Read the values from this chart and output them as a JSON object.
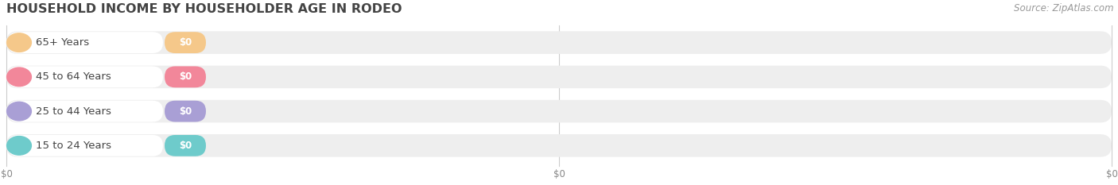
{
  "title": "HOUSEHOLD INCOME BY HOUSEHOLDER AGE IN RODEO",
  "source": "Source: ZipAtlas.com",
  "categories": [
    "15 to 24 Years",
    "25 to 44 Years",
    "45 to 64 Years",
    "65+ Years"
  ],
  "values": [
    0,
    0,
    0,
    0
  ],
  "bar_colors": [
    "#6ecbcb",
    "#a99fd5",
    "#f2879a",
    "#f5c88a"
  ],
  "bar_bg_color": "#eeeeee",
  "background_color": "#ffffff",
  "tick_labels": [
    "$0",
    "$0",
    "$0"
  ],
  "title_fontsize": 11.5,
  "source_fontsize": 8.5,
  "label_fontsize": 9.5,
  "value_fontsize": 8.5
}
